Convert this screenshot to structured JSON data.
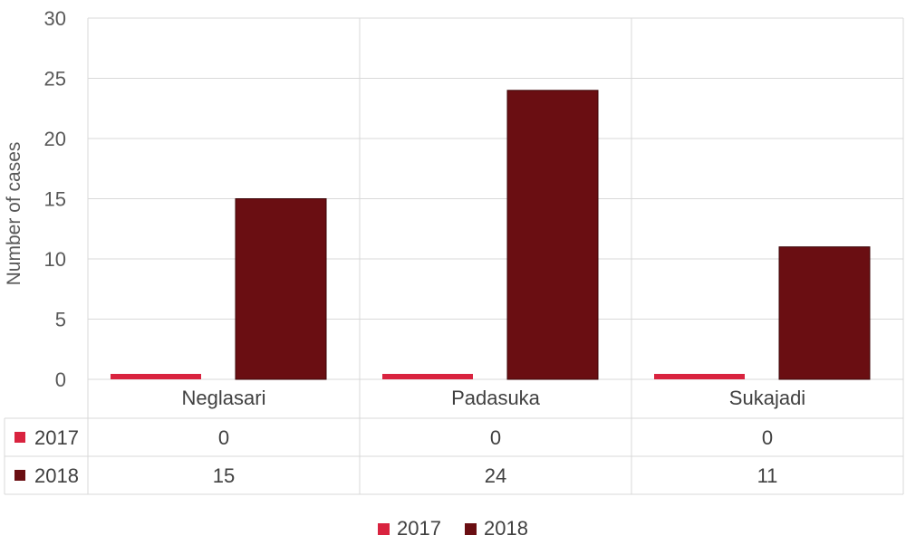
{
  "chart_data": {
    "type": "bar",
    "title": "",
    "xlabel": "",
    "ylabel": "Number of cases",
    "ylim": [
      0,
      30
    ],
    "yticks": [
      0,
      5,
      10,
      15,
      20,
      25,
      30
    ],
    "categories": [
      "Neglasari",
      "Padasuka",
      "Sukajadi"
    ],
    "series": [
      {
        "name": "2017",
        "values": [
          0,
          0,
          0
        ],
        "color": "#d9233f"
      },
      {
        "name": "2018",
        "values": [
          15,
          24,
          11
        ],
        "color": "#6a0e12"
      }
    ],
    "grid": true,
    "data_table": true,
    "legend": "bottom"
  }
}
